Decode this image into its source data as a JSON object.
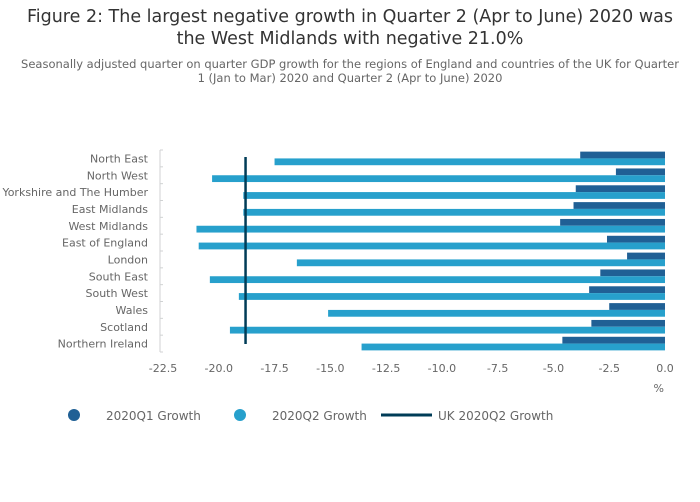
{
  "header": {
    "title_line1": "Figure 2: The largest negative growth in Quarter 2 (Apr to June) 2020 was",
    "title_line2": "the West Midlands with negative 21.0%",
    "subtitle_line1": "Seasonally adjusted quarter on quarter GDP growth for the regions of England and countries of the UK for Quarter",
    "subtitle_line2": "1 (Jan to Mar) 2020 and Quarter 2 (Apr to June) 2020"
  },
  "colors": {
    "q1": "#206095",
    "q2": "#27a0cc",
    "uk_line": "#003c57"
  },
  "chart_data": {
    "type": "bar",
    "orientation": "horizontal",
    "categories": [
      "North East",
      "North West",
      "Yorkshire and The Humber",
      "East Midlands",
      "West Midlands",
      "East of England",
      "London",
      "South East",
      "South West",
      "Wales",
      "Scotland",
      "Northern Ireland"
    ],
    "series": [
      {
        "name": "2020Q1 Growth",
        "values": [
          -3.8,
          -2.2,
          -4.0,
          -4.1,
          -4.7,
          -2.6,
          -1.7,
          -2.9,
          -3.4,
          -2.5,
          -3.3,
          -4.6
        ]
      },
      {
        "name": "2020Q2 Growth",
        "values": [
          -17.5,
          -20.3,
          -18.9,
          -18.9,
          -21.0,
          -20.9,
          -16.5,
          -20.4,
          -19.1,
          -15.1,
          -19.5,
          -13.6
        ]
      }
    ],
    "reference_line": {
      "name": "UK 2020Q2 Growth",
      "value": -18.8
    },
    "x_ticks": [
      "-22.5",
      "-20.0",
      "-17.5",
      "-15.0",
      "-12.5",
      "-10.0",
      "-7.5",
      "-5.0",
      "-2.5",
      "0.0"
    ],
    "xlim": [
      -22.5,
      0
    ],
    "x_unit": "%",
    "grid": false,
    "legend_position": "bottom"
  }
}
